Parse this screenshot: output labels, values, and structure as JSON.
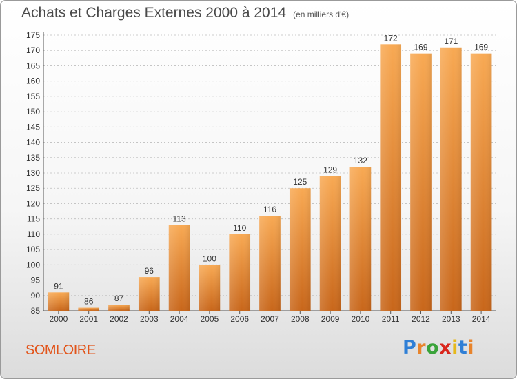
{
  "header": {
    "title": "Achats et Charges Externes 2000 à 2014",
    "unit": "(en milliers d'€)"
  },
  "footer": {
    "commune": "SOMLOIRE",
    "logo": "Proxiti"
  },
  "chart_data": {
    "type": "bar",
    "title": "Achats et Charges Externes 2000 à 2014",
    "subtitle": "(en milliers d'€)",
    "xlabel": "",
    "ylabel": "",
    "categories": [
      "2000",
      "2001",
      "2002",
      "2003",
      "2004",
      "2005",
      "2006",
      "2007",
      "2008",
      "2009",
      "2010",
      "2011",
      "2012",
      "2013",
      "2014"
    ],
    "values": [
      91,
      86,
      87,
      96,
      113,
      100,
      110,
      116,
      125,
      129,
      132,
      172,
      169,
      171,
      169
    ],
    "ylim": [
      85,
      175
    ],
    "yticks": [
      85,
      90,
      95,
      100,
      105,
      110,
      115,
      120,
      125,
      130,
      135,
      140,
      145,
      150,
      155,
      160,
      165,
      170,
      175
    ],
    "grid": "horizontal dashed",
    "bar_color": "#f5a04a",
    "bar_color_dark": "#c8661a"
  }
}
